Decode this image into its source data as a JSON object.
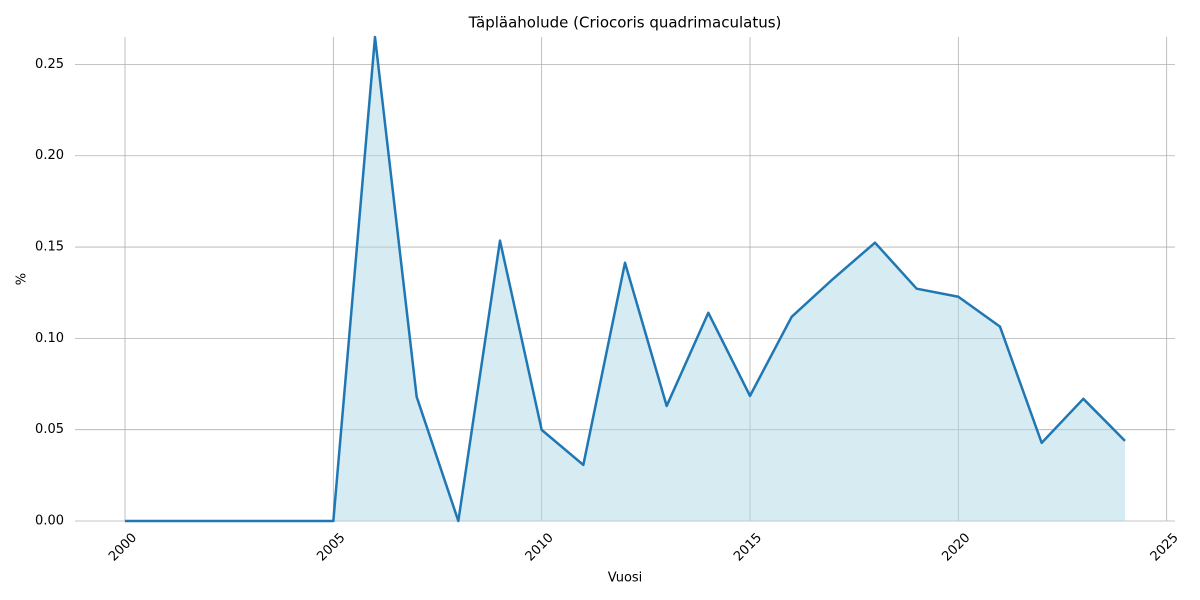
{
  "chart_data": {
    "type": "area",
    "title": "Täpläaholude (Criocoris quadrimaculatus)",
    "x_label": "Vuosi",
    "y_label": "%",
    "x": [
      2000,
      2001,
      2002,
      2003,
      2004,
      2005,
      2006,
      2007,
      2008,
      2009,
      2010,
      2011,
      2012,
      2013,
      2014,
      2015,
      2016,
      2017,
      2018,
      2019,
      2020,
      2021,
      2022,
      2023,
      2024
    ],
    "values": [
      0,
      0,
      0,
      0,
      0,
      0,
      0.265,
      0.068,
      0,
      0.1535,
      0.0499,
      0.0307,
      0.1414,
      0.063,
      0.114,
      0.0685,
      0.1118,
      0.1327,
      0.1524,
      0.1272,
      0.1228,
      0.1064,
      0.0428,
      0.0669,
      0.0439
    ],
    "color": "#1f77b4",
    "fill_color": "#add8e6",
    "xlim": [
      1998.8,
      2025.2
    ],
    "ylim": [
      0,
      0.265
    ],
    "xticks": [
      2000,
      2005,
      2010,
      2015,
      2020,
      2025
    ],
    "yticks": [
      {
        "value": 0,
        "label": "0.00"
      },
      0.05,
      {
        "value": 0.1,
        "label": "0.10"
      },
      0.15,
      {
        "value": 0.2,
        "label": "0.20"
      },
      0.25
    ],
    "grid": true
  }
}
